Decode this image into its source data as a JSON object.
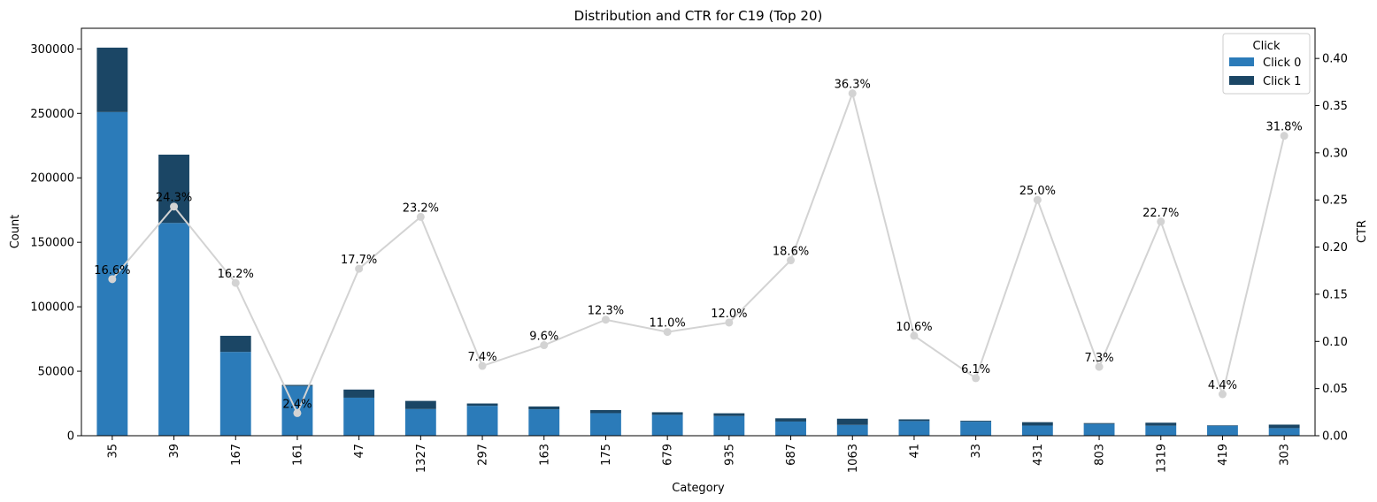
{
  "chart_data": {
    "type": "bar",
    "stacked": true,
    "title": "Distribution and CTR for C19 (Top 20)",
    "xlabel": "Category",
    "ylabel": "Count",
    "y2label": "CTR",
    "ylim": [
      0,
      316000
    ],
    "y2lim": [
      0,
      0.432
    ],
    "yticks": [
      0,
      50000,
      100000,
      150000,
      200000,
      250000,
      300000
    ],
    "y2ticks": [
      0.0,
      0.05,
      0.1,
      0.15,
      0.2,
      0.25,
      0.3,
      0.35,
      0.4
    ],
    "categories": [
      "35",
      "39",
      "167",
      "161",
      "47",
      "1327",
      "297",
      "163",
      "175",
      "679",
      "935",
      "687",
      "1063",
      "41",
      "33",
      "431",
      "803",
      "1319",
      "419",
      "303"
    ],
    "series": [
      {
        "name": "Click 0",
        "color": "#2b7bb9",
        "values": [
          251000,
          165000,
          65000,
          38500,
          29500,
          20700,
          23200,
          20500,
          17500,
          16200,
          15300,
          11000,
          8400,
          11400,
          10900,
          7900,
          9100,
          7800,
          7700,
          5900
        ]
      },
      {
        "name": "Click 1",
        "color": "#1b4665",
        "values": [
          50000,
          53000,
          12500,
          900,
          6300,
          6300,
          1800,
          2200,
          2400,
          2000,
          2100,
          2500,
          4800,
          1300,
          700,
          2600,
          700,
          2300,
          400,
          2700
        ]
      }
    ],
    "ctr": {
      "color": "#d3d3d3",
      "values": [
        0.166,
        0.243,
        0.162,
        0.024,
        0.177,
        0.232,
        0.074,
        0.096,
        0.123,
        0.11,
        0.12,
        0.186,
        0.363,
        0.106,
        0.061,
        0.25,
        0.073,
        0.227,
        0.044,
        0.318
      ],
      "labels": [
        "16.6%",
        "24.3%",
        "16.2%",
        "2.4%",
        "17.7%",
        "23.2%",
        "7.4%",
        "9.6%",
        "12.3%",
        "11.0%",
        "12.0%",
        "18.6%",
        "36.3%",
        "10.6%",
        "6.1%",
        "25.0%",
        "7.3%",
        "22.7%",
        "4.4%",
        "31.8%"
      ]
    },
    "legend": {
      "title": "Click",
      "position": "top-right"
    },
    "grid": false
  }
}
